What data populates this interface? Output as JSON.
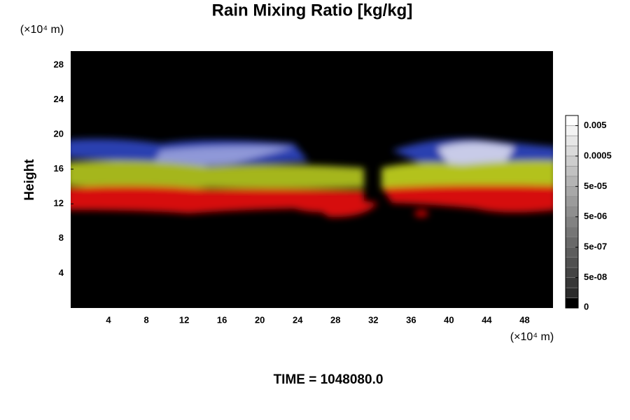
{
  "chart_data": {
    "type": "heatmap",
    "title": "Rain Mixing Ratio [kg/kg]",
    "x_unit": "(×10⁴ m)",
    "y_unit": "(×10⁴ m)",
    "ylabel": "Height",
    "footer": "TIME = 1048080.0",
    "xlim": [
      0,
      51
    ],
    "xticks": [
      4,
      8,
      12,
      16,
      20,
      24,
      28,
      32,
      36,
      40,
      44,
      48
    ],
    "ylim": [
      0,
      29.6
    ],
    "yticks": [
      4,
      8,
      12,
      16,
      20,
      24,
      28
    ],
    "colorbar_ticks": [
      0,
      {
        "value": 5e-08,
        "label": "5e-08"
      },
      {
        "value": 5e-07,
        "label": "5e-07"
      },
      {
        "value": 5e-06,
        "label": "5e-06"
      },
      {
        "value": 5e-05,
        "label": "5e-05"
      },
      0.0005,
      0.005
    ]
  }
}
